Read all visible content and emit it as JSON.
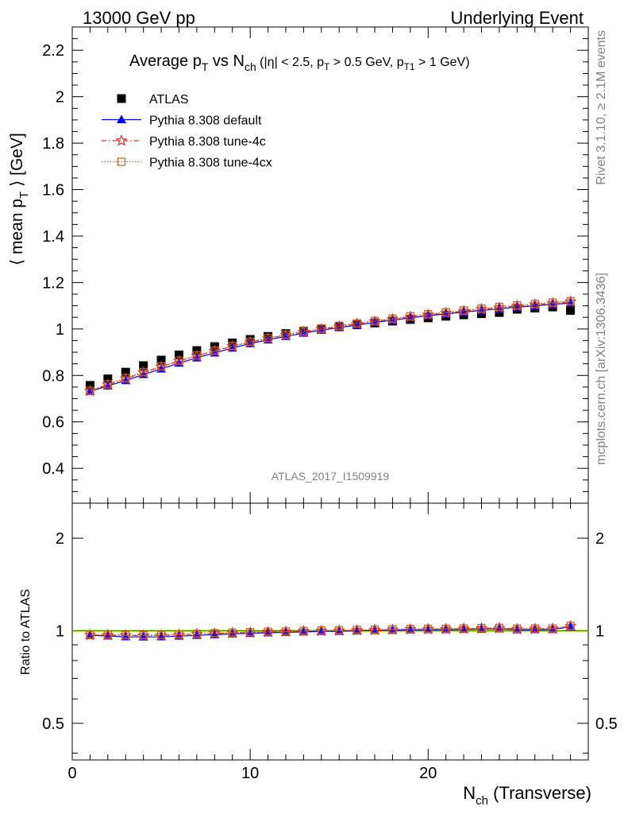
{
  "header": {
    "left_label": "13000 GeV pp",
    "right_label": "Underlying Event"
  },
  "side_text": {
    "top": "Rivet 3.1.10, ≥ 2.1M events",
    "bottom": "mcplots.cern.ch [arXiv:1306.3436]"
  },
  "analysis_label": "ATLAS_2017_I1509919",
  "chart_data": [
    {
      "type": "scatter",
      "title": "Average pT vs Nch (|η| < 2.5, pT > 0.5 GeV, pT1 > 1 GeV)",
      "ylabel": "⟨ mean pT ⟩ [GeV]",
      "xlabel": "Nch (Transverse)",
      "xlim": [
        0,
        29
      ],
      "ylim": [
        0.25,
        2.3
      ],
      "yticks": [
        0.4,
        0.6,
        0.8,
        1,
        1.2,
        1.4,
        1.6,
        1.8,
        2,
        2.2
      ],
      "xticks": [
        0,
        10,
        20
      ],
      "legend_position": "top-left",
      "x": [
        1,
        2,
        3,
        4,
        5,
        6,
        7,
        8,
        9,
        10,
        11,
        12,
        13,
        14,
        15,
        16,
        17,
        18,
        19,
        20,
        21,
        22,
        23,
        24,
        25,
        26,
        27,
        28
      ],
      "series": [
        {
          "name": "ATLAS",
          "color": "#000000",
          "marker": "filled-square",
          "values": [
            0.757,
            0.785,
            0.814,
            0.842,
            0.866,
            0.888,
            0.907,
            0.924,
            0.94,
            0.955,
            0.968,
            0.98,
            0.99,
            1.0,
            1.01,
            1.018,
            1.026,
            1.034,
            1.041,
            1.048,
            1.055,
            1.061,
            1.066,
            1.071,
            1.085,
            1.09,
            1.095,
            1.08
          ]
        },
        {
          "name": "Pythia 8.308 default",
          "color": "#0000ff",
          "marker": "filled-triangle",
          "values": [
            0.731,
            0.755,
            0.778,
            0.804,
            0.828,
            0.853,
            0.876,
            0.897,
            0.918,
            0.937,
            0.953,
            0.968,
            0.982,
            0.995,
            1.006,
            1.017,
            1.028,
            1.038,
            1.048,
            1.057,
            1.065,
            1.073,
            1.08,
            1.087,
            1.094,
            1.1,
            1.106,
            1.112
          ]
        },
        {
          "name": "Pythia 8.308 tune-4c",
          "color": "#e03030",
          "marker": "open-star",
          "values": [
            0.733,
            0.76,
            0.786,
            0.812,
            0.837,
            0.862,
            0.884,
            0.905,
            0.925,
            0.943,
            0.959,
            0.973,
            0.987,
            0.999,
            1.011,
            1.022,
            1.032,
            1.042,
            1.052,
            1.061,
            1.069,
            1.077,
            1.085,
            1.092,
            1.099,
            1.105,
            1.111,
            1.117
          ]
        },
        {
          "name": "Pythia 8.308 tune-4cx",
          "color": "#c85a1e",
          "marker": "open-square",
          "values": [
            0.734,
            0.762,
            0.789,
            0.815,
            0.84,
            0.864,
            0.886,
            0.907,
            0.927,
            0.945,
            0.961,
            0.975,
            0.989,
            1.002,
            1.014,
            1.025,
            1.035,
            1.045,
            1.055,
            1.064,
            1.072,
            1.08,
            1.088,
            1.095,
            1.102,
            1.108,
            1.114,
            1.12
          ]
        }
      ]
    },
    {
      "type": "scatter",
      "title": "",
      "ylabel": "Ratio to ATLAS",
      "xlabel": "Nch (Transverse)",
      "xlim": [
        0,
        29
      ],
      "ylim": [
        0.38,
        2.6
      ],
      "log_y": true,
      "yticks": [
        0.5,
        1,
        2
      ],
      "xticks": [
        0,
        10,
        20
      ],
      "reference": {
        "value": 1.0,
        "band_color": "#ffff66",
        "line_color": "#00aa00"
      },
      "x": [
        1,
        2,
        3,
        4,
        5,
        6,
        7,
        8,
        9,
        10,
        11,
        12,
        13,
        14,
        15,
        16,
        17,
        18,
        19,
        20,
        21,
        22,
        23,
        24,
        25,
        26,
        27,
        28
      ],
      "series": [
        {
          "name": "Pythia 8.308 default",
          "color": "#0000ff",
          "marker": "filled-triangle",
          "values": [
            0.966,
            0.962,
            0.956,
            0.955,
            0.956,
            0.961,
            0.966,
            0.971,
            0.977,
            0.981,
            0.985,
            0.988,
            0.992,
            0.995,
            0.996,
            0.999,
            1.002,
            1.004,
            1.007,
            1.009,
            1.009,
            1.011,
            1.013,
            1.015,
            1.008,
            1.009,
            1.01,
            1.03
          ]
        },
        {
          "name": "Pythia 8.308 tune-4c",
          "color": "#e03030",
          "marker": "open-star",
          "values": [
            0.968,
            0.968,
            0.966,
            0.964,
            0.966,
            0.971,
            0.975,
            0.979,
            0.984,
            0.987,
            0.991,
            0.993,
            0.997,
            0.999,
            1.001,
            1.004,
            1.006,
            1.008,
            1.011,
            1.012,
            1.013,
            1.015,
            1.018,
            1.02,
            1.013,
            1.014,
            1.015,
            1.034
          ]
        },
        {
          "name": "Pythia 8.308 tune-4cx",
          "color": "#c85a1e",
          "marker": "open-square",
          "values": [
            0.97,
            0.971,
            0.969,
            0.968,
            0.97,
            0.973,
            0.977,
            0.982,
            0.986,
            0.99,
            0.993,
            0.995,
            0.999,
            1.002,
            1.004,
            1.007,
            1.009,
            1.011,
            1.013,
            1.015,
            1.016,
            1.018,
            1.021,
            1.022,
            1.016,
            1.017,
            1.017,
            1.037
          ]
        }
      ]
    }
  ]
}
